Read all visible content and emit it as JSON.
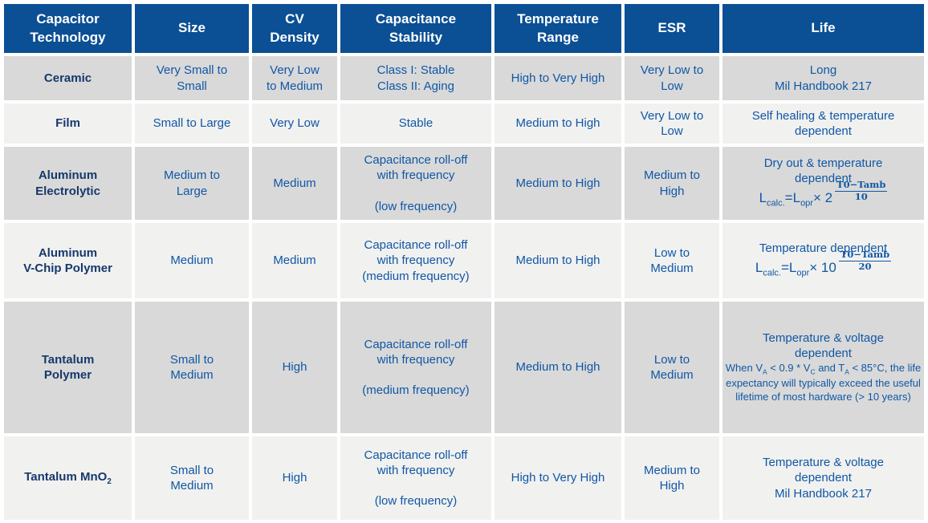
{
  "colors": {
    "header_bg": "#0B4F94",
    "header_text": "#FFFFFF",
    "row_dark_bg": "#D9D9D9",
    "row_light_bg": "#F1F1F0",
    "body_text": "#1057A5",
    "tech_text": "#16396B"
  },
  "table": {
    "headers": [
      "Capacitor\nTechnology",
      "Size",
      "CV\nDensity",
      "Capacitance\nStability",
      "Temperature\nRange",
      "ESR",
      "Life"
    ],
    "rows": [
      {
        "tech": "Ceramic",
        "size": "Very Small to\nSmall",
        "cv_density": "Very Low\nto Medium",
        "stability": "Class I: Stable\nClass II: Aging",
        "temp_range": "High to Very High",
        "esr": "Very Low to\nLow",
        "life": {
          "text": "Long\nMil Handbook 217"
        }
      },
      {
        "tech": "Film",
        "size": "Small to Large",
        "cv_density": "Very Low",
        "stability": "Stable",
        "temp_range": "Medium to High",
        "esr": "Very Low to\nLow",
        "life": {
          "text": "Self healing & temperature\ndependent"
        }
      },
      {
        "tech": "Aluminum\nElectrolytic",
        "size": "Medium to\nLarge",
        "cv_density": "Medium",
        "stability": "Capacitance roll-off\nwith frequency\n\n(low frequency)",
        "temp_range": "Medium to High",
        "esr": "Medium to\nHigh",
        "life": {
          "text": "Dry out & temperature\ndependent",
          "formula": {
            "p1": "L",
            "sub1": "calc.",
            "p2": "=L",
            "sub2": "opr",
            "p3": "× 2",
            "num": "T0−Tamb",
            "den": "10"
          }
        }
      },
      {
        "tech": "Aluminum\nV-Chip Polymer",
        "size": "Medium",
        "cv_density": "Medium",
        "stability": "Capacitance roll-off\nwith frequency\n(medium frequency)",
        "temp_range": "Medium to High",
        "esr": "Low to\nMedium",
        "life": {
          "text": "Temperature dependent",
          "formula": {
            "p1": "L",
            "sub1": "calc.",
            "p2": "=L",
            "sub2": "opr",
            "p3": "× 10",
            "num": "T0−Tamb",
            "den": "20"
          }
        }
      },
      {
        "tech": "Tantalum\nPolymer",
        "size": "Small to\nMedium",
        "cv_density": "High",
        "stability": "Capacitance roll-off\nwith frequency\n\n(medium frequency)",
        "temp_range": "Medium to High",
        "esr": "Low to\nMedium",
        "life": {
          "text": "Temperature & voltage\ndependent",
          "note_parts": [
            {
              "t": "When V"
            },
            {
              "t": "A",
              "sub": true
            },
            {
              "t": " < 0.9 * V"
            },
            {
              "t": "C",
              "sub": true
            },
            {
              "t": " and T"
            },
            {
              "t": "A",
              "sub": true
            },
            {
              "t": " < 85°C, the life expectancy will typically exceed the useful lifetime of most hardware (> 10 years)"
            }
          ]
        }
      },
      {
        "tech": "Tantalum MnO",
        "tech_sub": "2",
        "size": "Small to\nMedium",
        "cv_density": "High",
        "stability": "Capacitance roll-off\nwith frequency\n\n(low frequency)",
        "temp_range": "High to Very High",
        "esr": "Medium to\nHigh",
        "life": {
          "text": "Temperature & voltage\ndependent\nMil Handbook 217"
        }
      }
    ]
  }
}
